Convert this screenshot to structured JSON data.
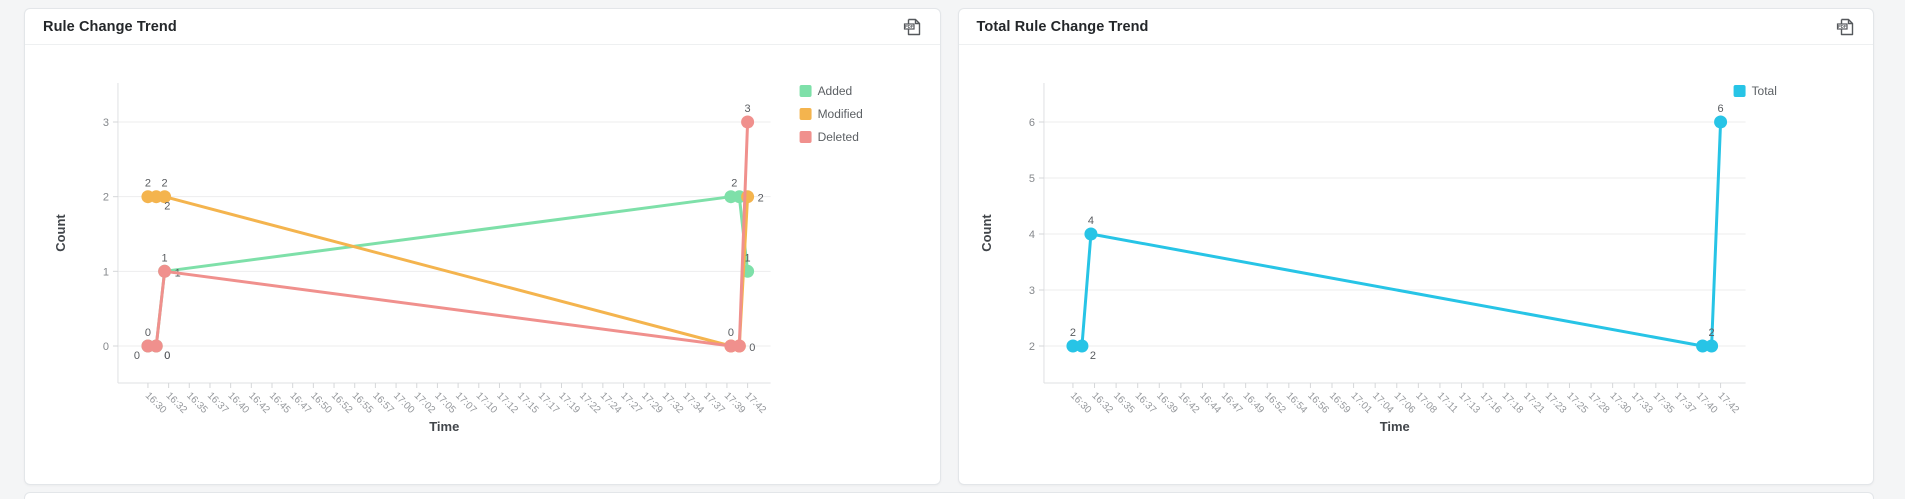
{
  "page": {
    "background": "#f4f5f6"
  },
  "panels": [
    {
      "title": "Rule Change Trend",
      "export_icon_text": "PDF",
      "chart_data": {
        "type": "line",
        "xlabel": "Time",
        "ylabel": "Count",
        "legend_position": "right-top",
        "grid": true,
        "y_ticks": [
          0,
          1,
          2,
          3
        ],
        "ylim": [
          -0.5,
          3.5
        ],
        "x_start": "16:30",
        "x_end": "17:42",
        "x_ticks": [
          "16:30",
          "16:32",
          "16:35",
          "16:37",
          "16:40",
          "16:42",
          "16:45",
          "16:47",
          "16:50",
          "16:52",
          "16:55",
          "16:57",
          "17:00",
          "17:02",
          "17:05",
          "17:07",
          "17:10",
          "17:12",
          "17:15",
          "17:17",
          "17:19",
          "17:22",
          "17:24",
          "17:27",
          "17:29",
          "17:32",
          "17:34",
          "17:37",
          "17:39",
          "17:42"
        ],
        "series": [
          {
            "name": "Added",
            "color": "#7ee0a9",
            "points": [
              {
                "time": "16:30",
                "value": 0,
                "label": "0",
                "label_pos": "bl"
              },
              {
                "time": "16:31",
                "value": 0,
                "label": "0",
                "label_pos": "br"
              },
              {
                "time": "16:32",
                "value": 1,
                "label": "1",
                "label_pos": "r"
              },
              {
                "time": "17:40",
                "value": 2,
                "label": "",
                "label_pos": "t"
              },
              {
                "time": "17:41",
                "value": 2,
                "label": "2",
                "label_pos": "tl"
              },
              {
                "time": "17:42",
                "value": 1,
                "label": "1",
                "label_pos": "t"
              }
            ]
          },
          {
            "name": "Modified",
            "color": "#f4b44e",
            "points": [
              {
                "time": "16:30",
                "value": 2,
                "label": "2",
                "label_pos": "t"
              },
              {
                "time": "16:31",
                "value": 2,
                "label": "2",
                "label_pos": "br"
              },
              {
                "time": "16:32",
                "value": 2,
                "label": "2",
                "label_pos": "t"
              },
              {
                "time": "17:40",
                "value": 0,
                "label": "",
                "label_pos": "t"
              },
              {
                "time": "17:41",
                "value": 0,
                "label": "",
                "label_pos": "t"
              },
              {
                "time": "17:42",
                "value": 2,
                "label": "2",
                "label_pos": "r"
              }
            ]
          },
          {
            "name": "Deleted",
            "color": "#f0908d",
            "points": [
              {
                "time": "16:30",
                "value": 0,
                "label": "0",
                "label_pos": "t"
              },
              {
                "time": "16:31",
                "value": 0,
                "label": "0",
                "label_pos": "br"
              },
              {
                "time": "16:32",
                "value": 1,
                "label": "1",
                "label_pos": "t"
              },
              {
                "time": "17:40",
                "value": 0,
                "label": "0",
                "label_pos": "t"
              },
              {
                "time": "17:41",
                "value": 0,
                "label": "0",
                "label_pos": "r"
              },
              {
                "time": "17:42",
                "value": 3,
                "label": "3",
                "label_pos": "t"
              }
            ]
          }
        ]
      }
    },
    {
      "title": "Total Rule Change Trend",
      "export_icon_text": "PDF",
      "chart_data": {
        "type": "line",
        "xlabel": "Time",
        "ylabel": "Count",
        "legend_position": "right-top",
        "grid": true,
        "y_ticks": [
          2,
          3,
          4,
          5,
          6
        ],
        "ylim": [
          1.3,
          6.7
        ],
        "x_start": "16:30",
        "x_end": "17:42",
        "x_ticks": [
          "16:30",
          "16:32",
          "16:35",
          "16:37",
          "16:39",
          "16:42",
          "16:44",
          "16:47",
          "16:49",
          "16:52",
          "16:54",
          "16:56",
          "16:59",
          "17:01",
          "17:04",
          "17:06",
          "17:08",
          "17:11",
          "17:13",
          "17:16",
          "17:18",
          "17:21",
          "17:23",
          "17:25",
          "17:28",
          "17:30",
          "17:33",
          "17:35",
          "17:37",
          "17:40",
          "17:42"
        ],
        "series": [
          {
            "name": "Total",
            "color": "#27c4e6",
            "points": [
              {
                "time": "16:30",
                "value": 2,
                "label": "2",
                "label_pos": "t"
              },
              {
                "time": "16:31",
                "value": 2,
                "label": "2",
                "label_pos": "br"
              },
              {
                "time": "16:32",
                "value": 4,
                "label": "4",
                "label_pos": "t"
              },
              {
                "time": "17:40",
                "value": 2,
                "label": "",
                "label_pos": "t"
              },
              {
                "time": "17:41",
                "value": 2,
                "label": "2",
                "label_pos": "t"
              },
              {
                "time": "17:42",
                "value": 6,
                "label": "6",
                "label_pos": "t"
              }
            ]
          }
        ]
      }
    }
  ]
}
